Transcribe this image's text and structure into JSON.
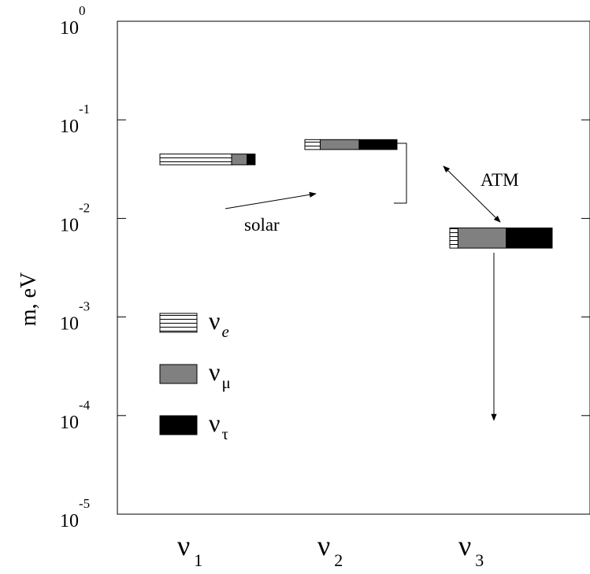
{
  "chart_data": {
    "type": "bar",
    "ylabel": "m, eV",
    "y_scale": "log",
    "ylim": [
      1e-05,
      1
    ],
    "y_ticks": [
      {
        "value": 1,
        "base": "10",
        "exp": "0"
      },
      {
        "value": 0.1,
        "base": "10",
        "exp": "-1"
      },
      {
        "value": 0.01,
        "base": "10",
        "exp": "-2"
      },
      {
        "value": 0.001,
        "base": "10",
        "exp": "-3"
      },
      {
        "value": 0.0001,
        "base": "10",
        "exp": "-4"
      },
      {
        "value": 1e-05,
        "base": "10",
        "exp": "-5"
      }
    ],
    "categories": [
      {
        "main": "ν",
        "sub": "1"
      },
      {
        "main": "ν",
        "sub": "2"
      },
      {
        "main": "ν",
        "sub": "3"
      }
    ],
    "flavors": [
      {
        "main": "ν",
        "sub": "e",
        "sub_italic": true,
        "pattern": "hlines",
        "color": "#ffffff"
      },
      {
        "main": "ν",
        "sub": "μ",
        "sub_italic": false,
        "pattern": "solid",
        "color": "#808080"
      },
      {
        "main": "ν",
        "sub": "τ",
        "sub_italic": false,
        "pattern": "solid",
        "color": "#000000"
      }
    ],
    "mass_states": [
      {
        "mass_top": 0.045,
        "mass_bottom": 0.035,
        "fractions": [
          0.7,
          0.15,
          0.08
        ]
      },
      {
        "mass_top": 0.063,
        "mass_bottom": 0.05,
        "fractions": [
          0.15,
          0.38,
          0.37
        ]
      },
      {
        "mass_top": 0.008,
        "mass_bottom": 0.005,
        "fractions": [
          0.08,
          0.47,
          0.45
        ]
      }
    ],
    "annotations": {
      "solar": "solar",
      "atm": "ATM"
    },
    "nu3_range_bottom": 0.0001
  }
}
